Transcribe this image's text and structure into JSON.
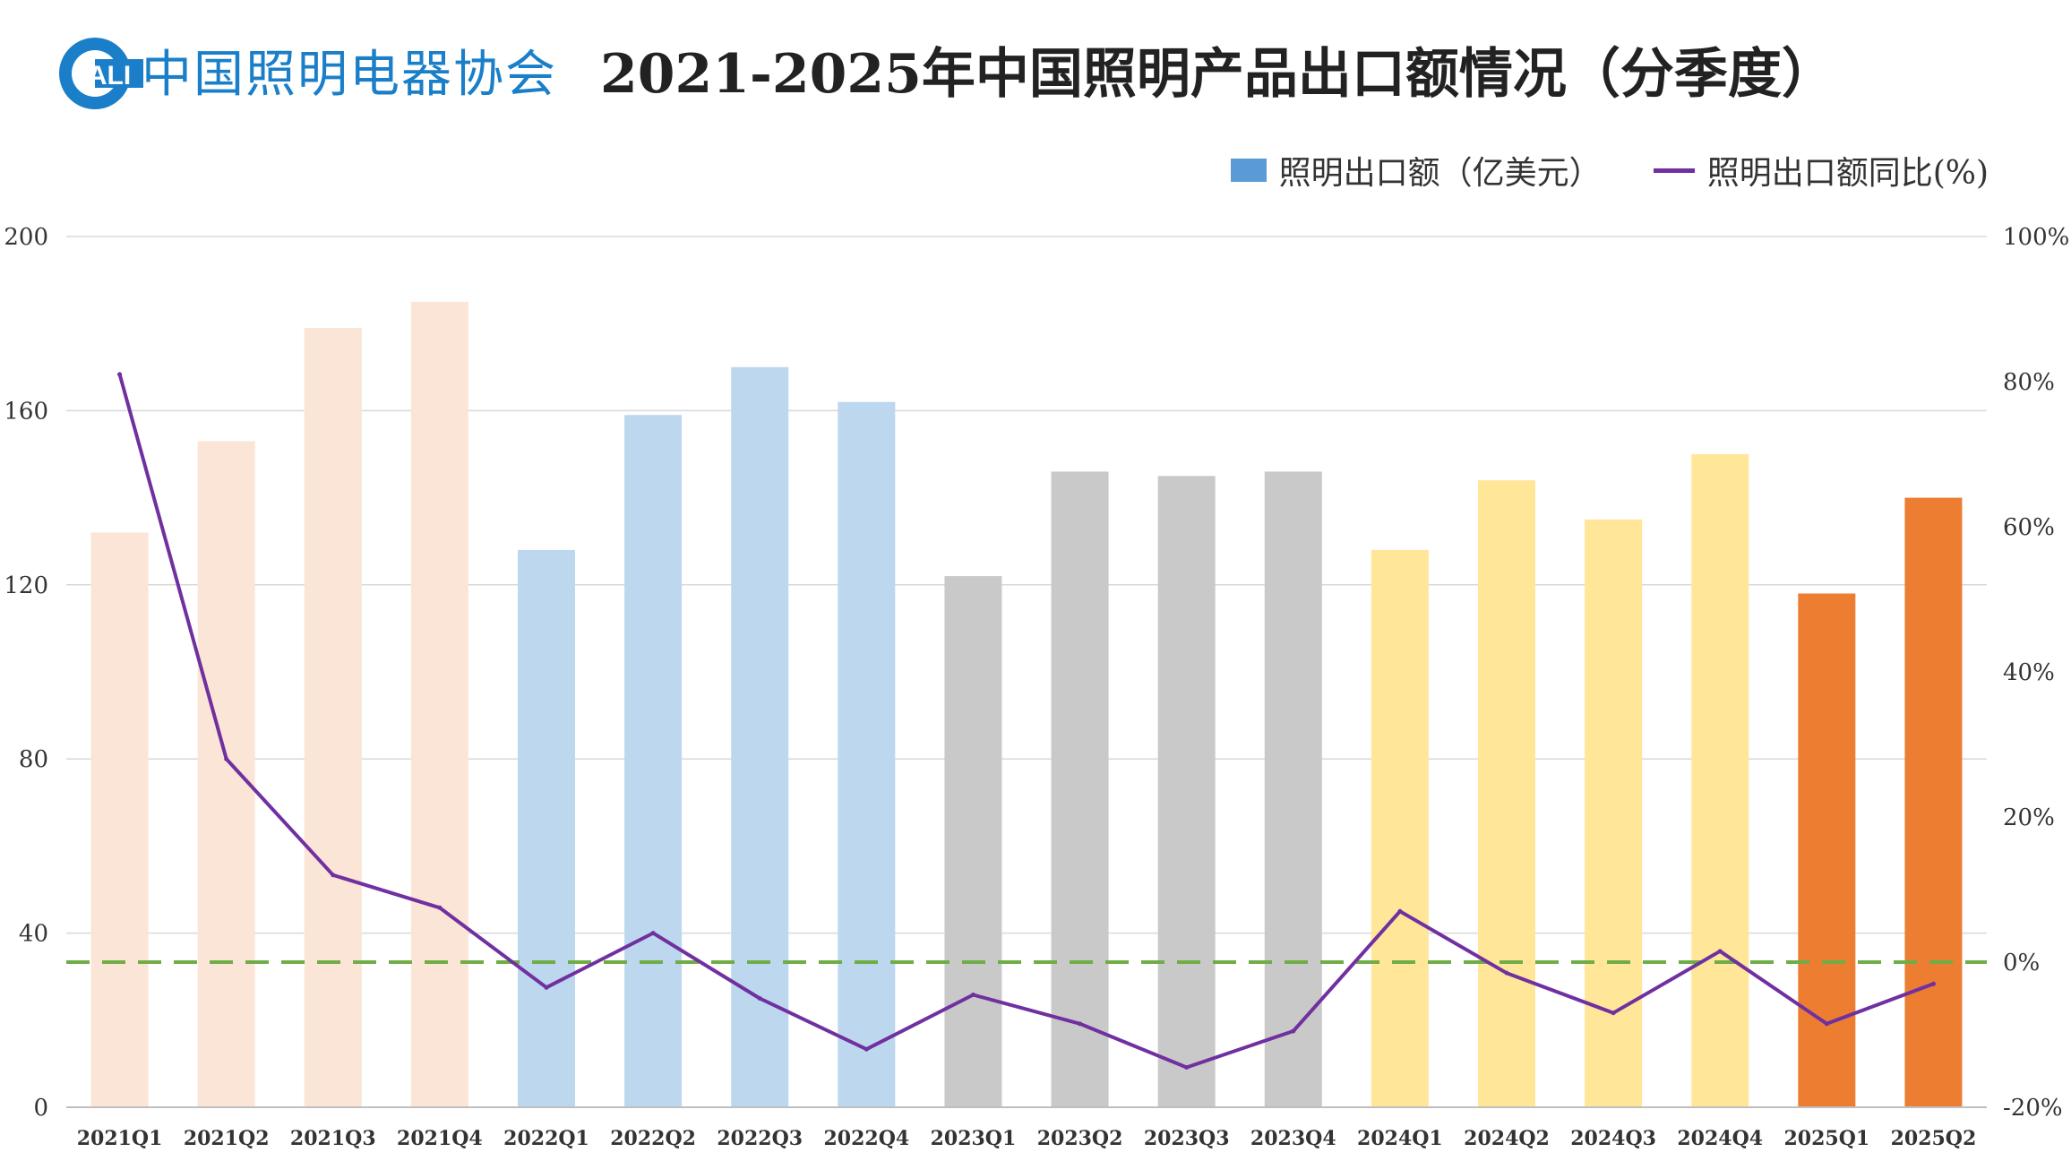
{
  "header": {
    "logo_mark": "ALI",
    "logo_text": "中国照明电器协会",
    "title": "2021-2025年中国照明产品出口额情况（分季度）"
  },
  "colors": {
    "logo_blue": "#1a7fc8",
    "line": "#7030a0",
    "zero_line": "#70ad47",
    "grid": "#d9d9d9",
    "bars_2021": "#fbe5d6",
    "bars_2022": "#bdd7ee",
    "bars_2023": "#c9c9c9",
    "bars_2024": "#ffe699",
    "bars_2025": "#ed7d31",
    "legend_bar": "#5b9bd5"
  },
  "chart_data": {
    "type": "bar",
    "categories": [
      "2021Q1",
      "2021Q2",
      "2021Q3",
      "2021Q4",
      "2022Q1",
      "2022Q2",
      "2022Q3",
      "2022Q4",
      "2023Q1",
      "2023Q2",
      "2023Q3",
      "2023Q4",
      "2024Q1",
      "2024Q2",
      "2024Q3",
      "2024Q4",
      "2025Q1",
      "2025Q2"
    ],
    "series": [
      {
        "name": "照明出口额（亿美元）",
        "type": "bar",
        "axis": "left",
        "values": [
          132,
          153,
          179,
          185,
          128,
          159,
          170,
          162,
          122,
          146,
          145,
          146,
          128,
          144,
          135,
          150,
          118,
          140
        ]
      },
      {
        "name": "照明出口额同比(%)",
        "type": "line",
        "axis": "right",
        "values": [
          81,
          28,
          12,
          7.5,
          -3.5,
          4,
          -5,
          -12,
          -4.5,
          -8.5,
          -14.5,
          -9.5,
          7,
          -1.5,
          -7,
          1.5,
          -8.5,
          -3
        ]
      }
    ],
    "y_left": {
      "min": 0,
      "max": 200,
      "ticks": [
        "0",
        "40",
        "80",
        "120",
        "160",
        "200"
      ]
    },
    "y_right": {
      "min": -20,
      "max": 100,
      "ticks": [
        "-20%",
        "0%",
        "20%",
        "40%",
        "60%",
        "80%",
        "100%"
      ]
    },
    "reference_line": {
      "axis": "right",
      "value": 0,
      "style": "dashed"
    },
    "bar_colors_by_year": [
      "#fbe5d6",
      "#fbe5d6",
      "#fbe5d6",
      "#fbe5d6",
      "#bdd7ee",
      "#bdd7ee",
      "#bdd7ee",
      "#bdd7ee",
      "#c9c9c9",
      "#c9c9c9",
      "#c9c9c9",
      "#c9c9c9",
      "#ffe699",
      "#ffe699",
      "#ffe699",
      "#ffe699",
      "#ed7d31",
      "#ed7d31"
    ],
    "grid": true,
    "legend_position": "top-right"
  }
}
